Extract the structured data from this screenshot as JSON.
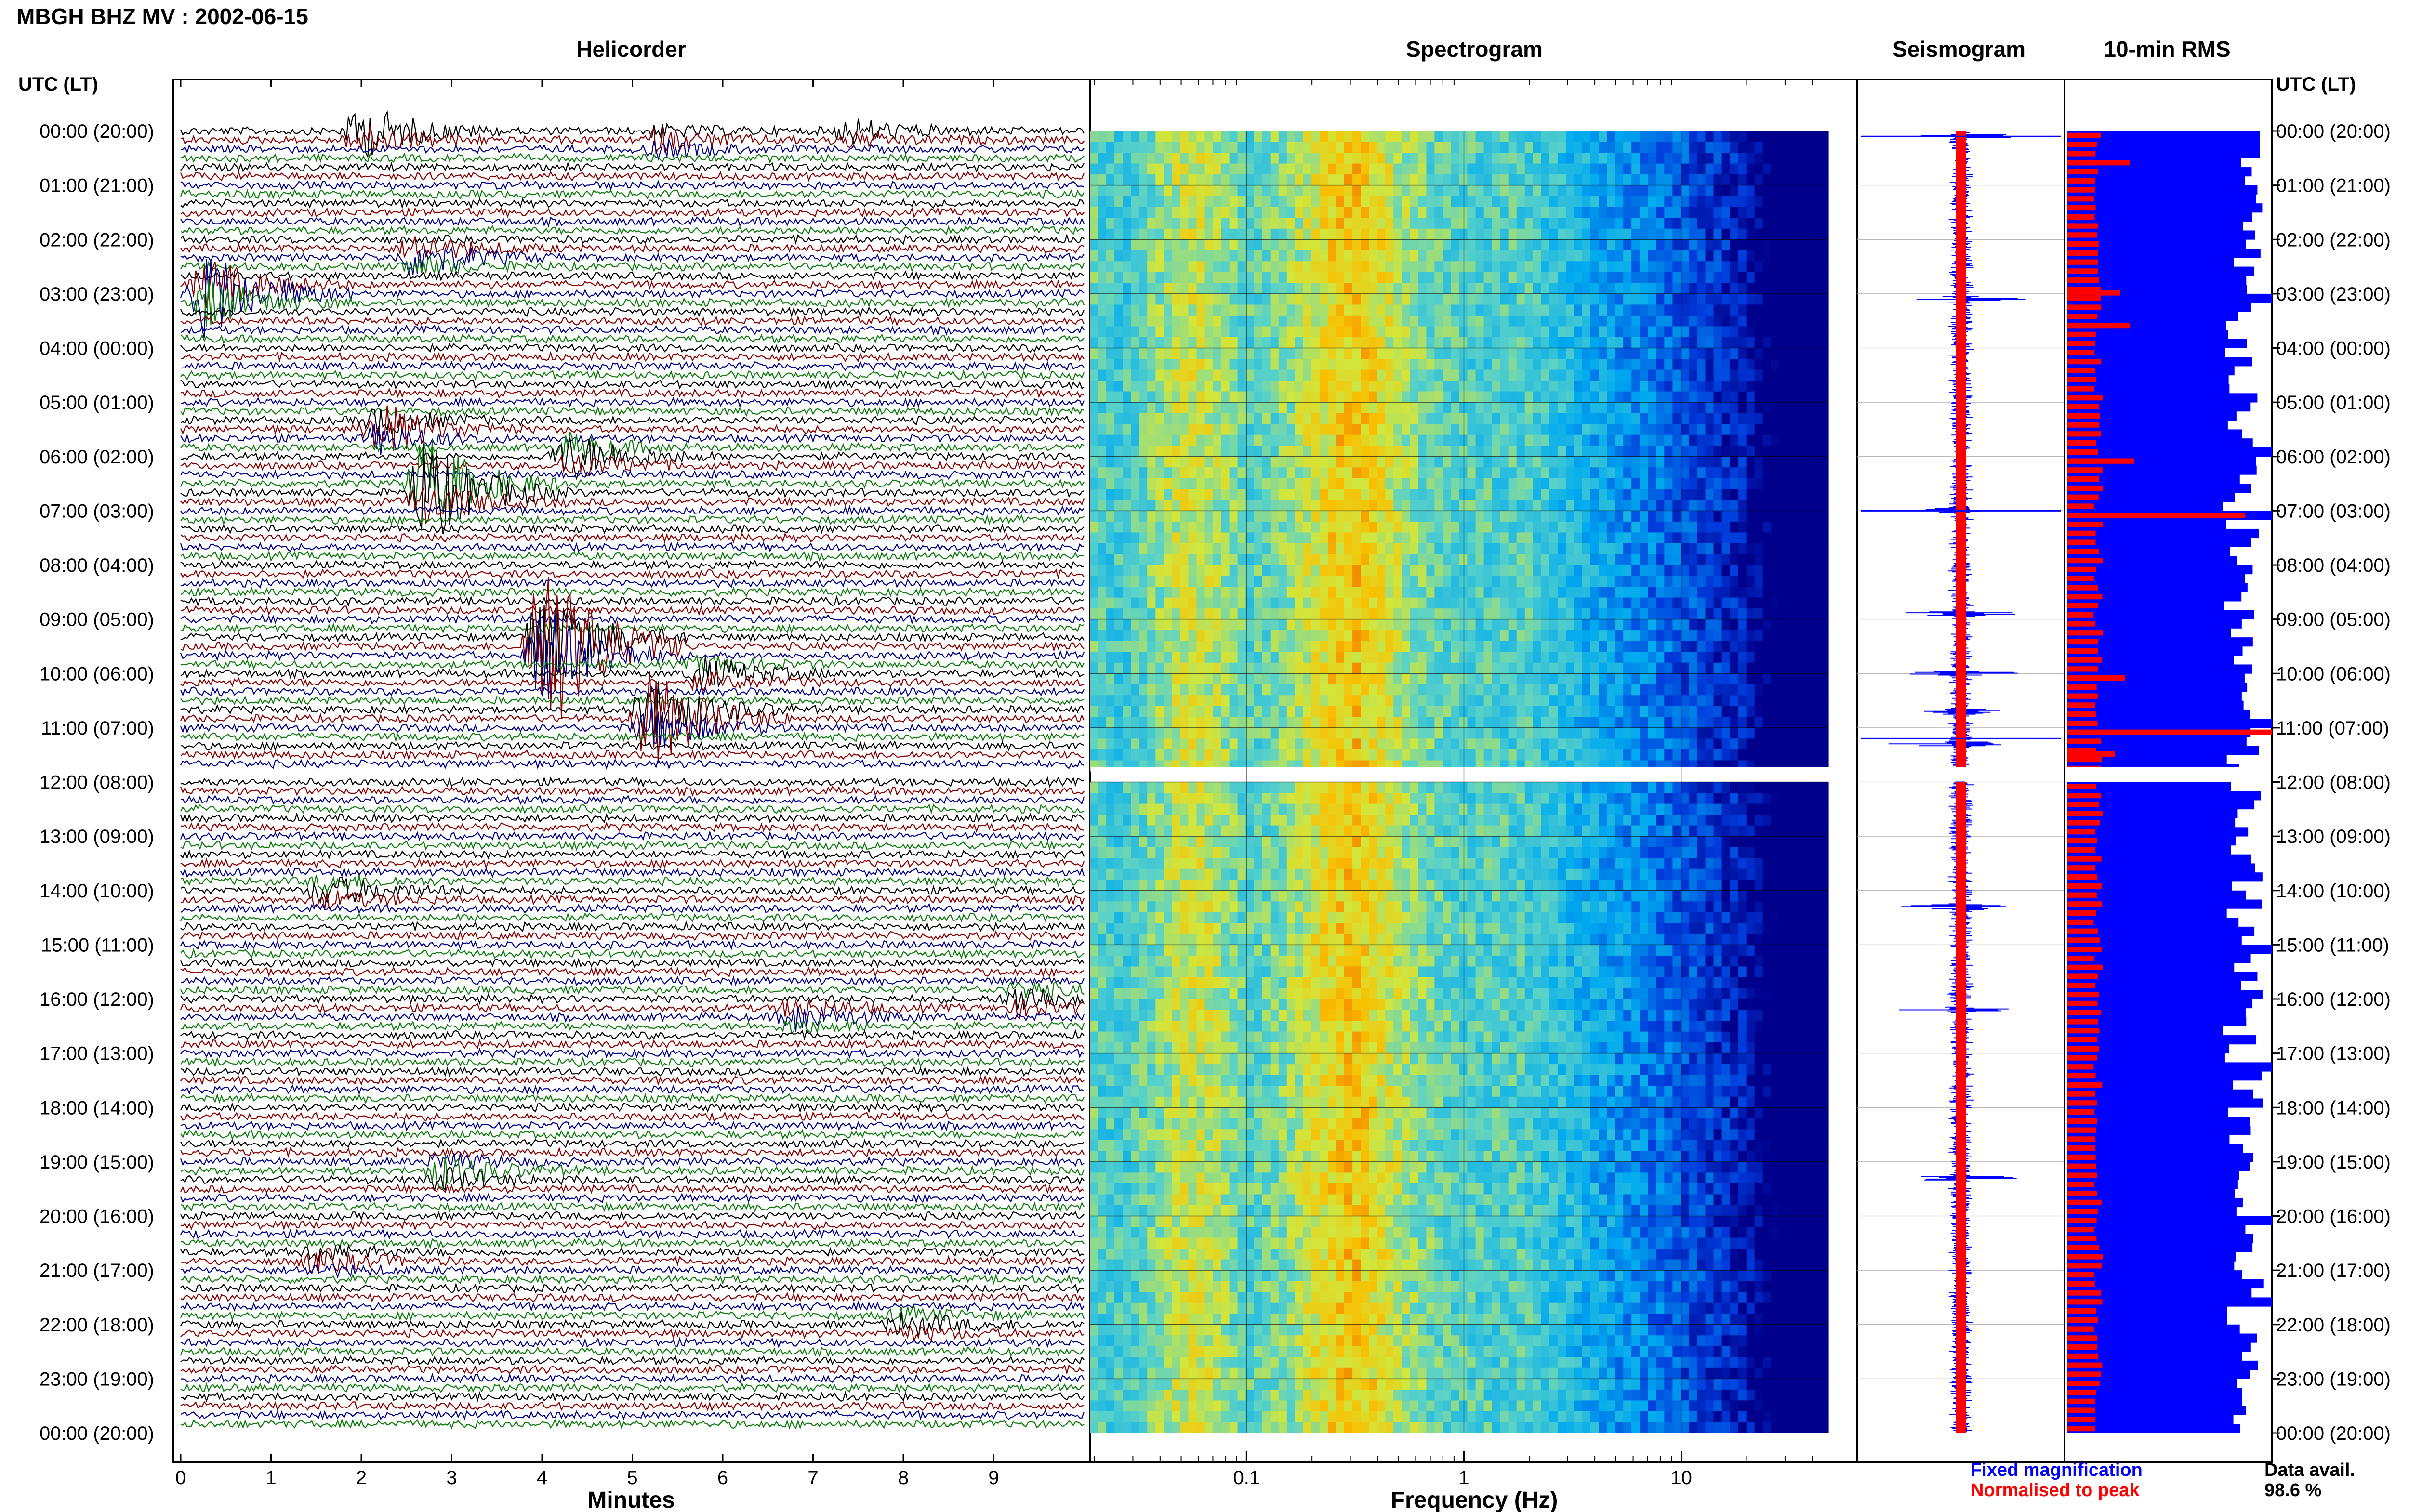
{
  "header": {
    "title": "MBGH BHZ MV : 2002-06-15"
  },
  "colors": {
    "trace": [
      "#000000",
      "#8b0000",
      "#00008b",
      "#0a7d0a"
    ],
    "fixed": "#0000ff",
    "peak": "#ff0000"
  },
  "panels": {
    "helicorder": "Helicorder",
    "spectrogram": "Spectrogram",
    "seismogram": "Seismogram",
    "rms": "10-min RMS"
  },
  "chart_data": {
    "type": "heatmap",
    "time_axis": {
      "label": "UTC (LT)",
      "ticks": [
        "00:00 (20:00)",
        "01:00 (21:00)",
        "02:00 (22:00)",
        "03:00 (23:00)",
        "04:00 (00:00)",
        "05:00 (01:00)",
        "06:00 (02:00)",
        "07:00 (03:00)",
        "08:00 (04:00)",
        "09:00 (05:00)",
        "10:00 (06:00)",
        "11:00 (07:00)",
        "12:00 (08:00)",
        "13:00 (09:00)",
        "14:00 (10:00)",
        "15:00 (11:00)",
        "16:00 (12:00)",
        "17:00 (13:00)",
        "18:00 (14:00)",
        "19:00 (15:00)",
        "20:00 (16:00)",
        "21:00 (17:00)",
        "22:00 (18:00)",
        "23:00 (19:00)",
        "00:00 (20:00)"
      ],
      "hours": 24
    },
    "helicorder": {
      "xlabel": "Minutes",
      "xticks": [
        0,
        1,
        2,
        3,
        4,
        5,
        6,
        7,
        8,
        9
      ],
      "xlim": [
        0,
        10
      ],
      "events": [
        {
          "hour": 0.0,
          "minute": 2.0,
          "color": 1,
          "amp": 0.9
        },
        {
          "hour": 0.2,
          "minute": 5.3,
          "color": 0,
          "amp": 0.4
        },
        {
          "hour": 0.0,
          "minute": 7.4,
          "color": 0,
          "amp": 0.4
        },
        {
          "hour": 2.3,
          "minute": 2.6,
          "color": 3,
          "amp": 0.7
        },
        {
          "hour": 3.0,
          "minute": 0.3,
          "color": 0,
          "amp": 1.6
        },
        {
          "hour": 5.5,
          "minute": 2.2,
          "color": 2,
          "amp": 0.9
        },
        {
          "hour": 6.0,
          "minute": 4.3,
          "color": 0,
          "amp": 0.8
        },
        {
          "hour": 6.6,
          "minute": 2.7,
          "color": 2,
          "amp": 2.3
        },
        {
          "hour": 9.5,
          "minute": 4.0,
          "color": 0,
          "amp": 3.5
        },
        {
          "hour": 10.8,
          "minute": 5.2,
          "color": 0,
          "amp": 1.9
        },
        {
          "hour": 10.0,
          "minute": 5.8,
          "color": 3,
          "amp": 0.5
        },
        {
          "hour": 14.0,
          "minute": 1.6,
          "color": 2,
          "amp": 0.5
        },
        {
          "hour": 16.3,
          "minute": 6.8,
          "color": 2,
          "amp": 0.5
        },
        {
          "hour": 16.0,
          "minute": 9.3,
          "color": 0,
          "amp": 0.5
        },
        {
          "hour": 19.2,
          "minute": 2.9,
          "color": 0,
          "amp": 0.6
        },
        {
          "hour": 20.8,
          "minute": 1.5,
          "color": 2,
          "amp": 0.4
        },
        {
          "hour": 22.0,
          "minute": 8.0,
          "color": 1,
          "amp": 0.4
        }
      ]
    },
    "spectrogram": {
      "xlabel": "Frequency (Hz)",
      "xscale": "log",
      "xticks": [
        "0.1",
        "1",
        "10"
      ],
      "xlim": [
        0.02,
        50
      ]
    },
    "seismogram": {
      "spikes_hours": [
        0.1,
        3.1,
        7.0,
        8.9,
        10.0,
        10.7,
        11.3,
        14.3,
        16.2,
        19.3
      ]
    },
    "rms": {
      "gap_hours": [
        11.7,
        12.0
      ]
    },
    "legend": {
      "fixed": "Fixed magnification",
      "peak": "Normalised to peak"
    },
    "availability": {
      "label": "Data avail.",
      "value": "98.6 %"
    }
  }
}
